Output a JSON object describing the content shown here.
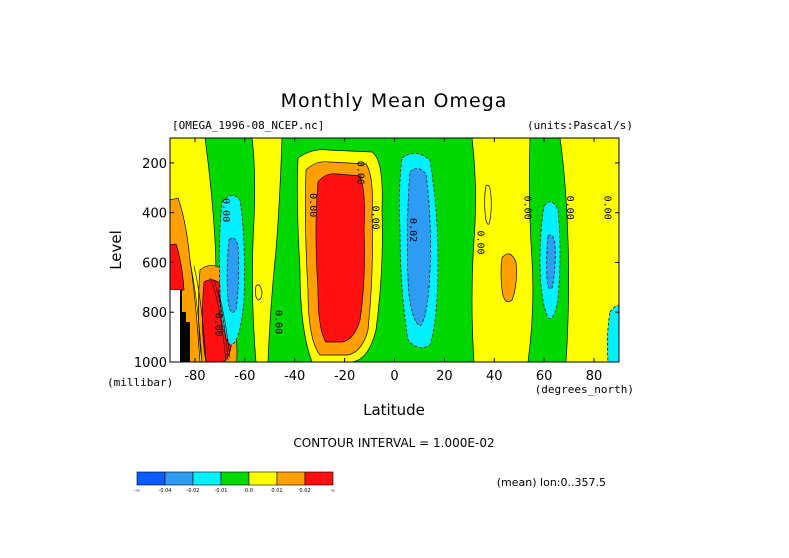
{
  "chart_data": {
    "type": "heatmap",
    "title": "Monthly Mean Omega",
    "dataset_label": "[OMEGA_1996-08_NCEP.nc]",
    "units_label": "(units:Pascal/s)",
    "xlabel": "Latitude",
    "x_units_label": "(degrees_north)",
    "ylabel": "Level",
    "y_units_label": "(millibar)",
    "xlim": [
      -90,
      90
    ],
    "ylim": [
      1000,
      100
    ],
    "x_ticks": [
      -80,
      -60,
      -40,
      -20,
      0,
      20,
      40,
      60,
      80
    ],
    "x_tick_labels": [
      "-80",
      "-60",
      "-40",
      "-20",
      "0",
      "20",
      "40",
      "60",
      "80"
    ],
    "y_ticks": [
      200,
      400,
      600,
      800,
      1000
    ],
    "y_tick_labels": [
      "200",
      "400",
      "600",
      "800",
      "1000"
    ],
    "contour_interval_text": "CONTOUR INTERVAL = 1.000E-02",
    "footer_text": "(mean) lon:0..357.5",
    "contour_labels": [
      {
        "text": "0.00",
        "lat": -70,
        "lev": 390
      },
      {
        "text": "0.00",
        "lat": -35,
        "lev": 370
      },
      {
        "text": "0.00",
        "lat": -10,
        "lev": 420
      },
      {
        "text": "0.00",
        "lat": 32,
        "lev": 520
      },
      {
        "text": "0.00",
        "lat": 51,
        "lev": 380
      },
      {
        "text": "0.00",
        "lat": 68,
        "lev": 380
      },
      {
        "text": "0.00",
        "lat": 83,
        "lev": 380
      },
      {
        "text": "0.00",
        "lat": -49,
        "lev": 840
      },
      {
        "text": "0.02",
        "lat": 5,
        "lev": 470
      },
      {
        "text": "0.06",
        "lat": -16,
        "lev": 240
      },
      {
        "text": "0.00",
        "lat": -73,
        "lev": 850
      }
    ],
    "colorbar": {
      "colors": [
        "#0a5cff",
        "#2e9cf2",
        "#00f0ff",
        "#00d800",
        "#ffff00",
        "#ffa000",
        "#ff1010"
      ],
      "labels": [
        "-∞",
        "-0.04",
        "-0.02",
        "-0.01",
        "0.0",
        "0.01",
        "0.02",
        "∞"
      ]
    },
    "levels_legend": [
      {
        "range": "< -0.04",
        "color": "#0a5cff"
      },
      {
        "range": "-0.04 to -0.02",
        "color": "#2e9cf2"
      },
      {
        "range": "-0.02 to -0.01",
        "color": "#00f0ff"
      },
      {
        "range": "-0.01 to 0.0",
        "color": "#00d800"
      },
      {
        "range": "0.0 to 0.01",
        "color": "#ffff00"
      },
      {
        "range": "0.01 to 0.02",
        "color": "#ffa000"
      },
      {
        "range": "> 0.02",
        "color": "#ff1010"
      }
    ]
  }
}
